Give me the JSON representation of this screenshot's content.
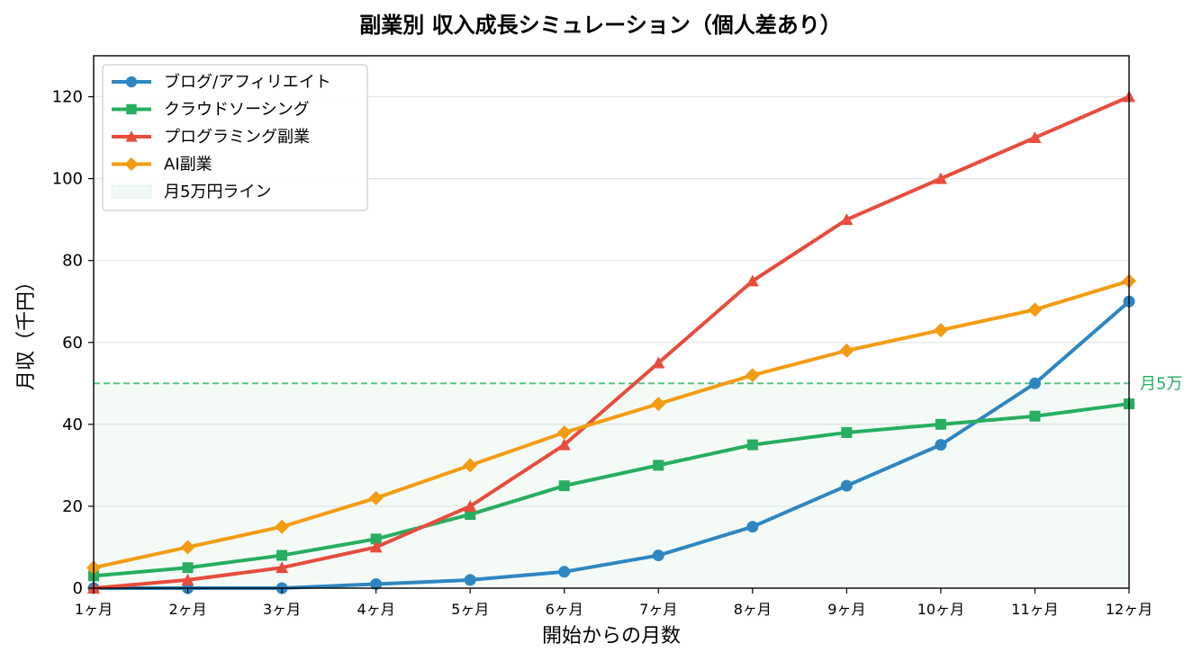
{
  "chart_data": {
    "type": "line",
    "title": "副業別 収入成長シミュレーション（個人差あり）",
    "xlabel": "開始からの月数",
    "ylabel": "月収（千円）",
    "categories": [
      "1ヶ月",
      "2ヶ月",
      "3ヶ月",
      "4ヶ月",
      "5ヶ月",
      "6ヶ月",
      "7ヶ月",
      "8ヶ月",
      "9ヶ月",
      "10ヶ月",
      "11ヶ月",
      "12ヶ月"
    ],
    "ylim": [
      0,
      130
    ],
    "yticks": [
      0,
      20,
      40,
      60,
      80,
      100,
      120
    ],
    "grid": "horizontal",
    "legend_position": "top-left",
    "series": [
      {
        "name": "ブログ/アフィリエイト",
        "color": "#2e86c1",
        "marker": "circle",
        "values": [
          0,
          0,
          0,
          1,
          2,
          4,
          8,
          15,
          25,
          35,
          50,
          70
        ]
      },
      {
        "name": "クラウドソーシング",
        "color": "#27ae60",
        "marker": "square",
        "values": [
          3,
          5,
          8,
          12,
          18,
          25,
          30,
          35,
          38,
          40,
          42,
          45
        ]
      },
      {
        "name": "プログラミング副業",
        "color": "#e74c3c",
        "marker": "triangle",
        "values": [
          0,
          2,
          5,
          10,
          20,
          35,
          55,
          75,
          90,
          100,
          110,
          120
        ]
      },
      {
        "name": "AI副業",
        "color": "#f39c12",
        "marker": "diamond",
        "values": [
          5,
          10,
          15,
          22,
          30,
          38,
          45,
          52,
          58,
          63,
          68,
          75
        ]
      }
    ],
    "threshold": {
      "value": 50,
      "legend_label": "月5万円ライン",
      "annotation": "月5万",
      "color": "#27ae60"
    }
  }
}
